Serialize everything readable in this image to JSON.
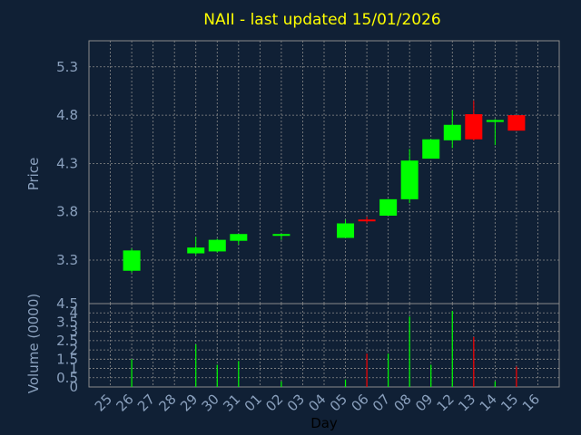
{
  "title": "NAII - last updated 15/01/2026",
  "colors": {
    "background": "#102035",
    "plot_border": "#8a8a8a",
    "grid": "#8a8a8a",
    "axis_text": "#8aa0bd",
    "title": "#ffff00",
    "up": "#00ff00",
    "down": "#ff0000"
  },
  "chart_data": [
    {
      "type": "candlestick",
      "ylabel": "Price",
      "y_ticks": [
        "3.3",
        "3.8",
        "4.3",
        "4.8",
        "5.3"
      ],
      "ylim": [
        2.85,
        5.57
      ],
      "grid": true,
      "x_index_range": [
        -1,
        21
      ],
      "candles": [
        {
          "day": "26",
          "open": 3.19,
          "high": 3.42,
          "low": 3.17,
          "close": 3.4
        },
        {
          "day": "29",
          "open": 3.37,
          "high": 3.54,
          "low": 3.35,
          "close": 3.43
        },
        {
          "day": "30",
          "open": 3.39,
          "high": 3.52,
          "low": 3.38,
          "close": 3.51
        },
        {
          "day": "31",
          "open": 3.5,
          "high": 3.57,
          "low": 3.46,
          "close": 3.57
        },
        {
          "day": "02",
          "open": 3.56,
          "high": 3.57,
          "low": 3.51,
          "close": 3.57
        },
        {
          "day": "05",
          "open": 3.53,
          "high": 3.72,
          "low": 3.53,
          "close": 3.68
        },
        {
          "day": "06",
          "open": 3.72,
          "high": 3.75,
          "low": 3.68,
          "close": 3.71
        },
        {
          "day": "07",
          "open": 3.76,
          "high": 3.93,
          "low": 3.76,
          "close": 3.93
        },
        {
          "day": "08",
          "open": 3.93,
          "high": 4.45,
          "low": 3.89,
          "close": 4.33
        },
        {
          "day": "09",
          "open": 4.35,
          "high": 4.55,
          "low": 4.35,
          "close": 4.55
        },
        {
          "day": "12",
          "open": 4.54,
          "high": 4.85,
          "low": 4.46,
          "close": 4.7
        },
        {
          "day": "13",
          "open": 4.81,
          "high": 4.95,
          "low": 4.54,
          "close": 4.55
        },
        {
          "day": "14",
          "open": 4.73,
          "high": 4.76,
          "low": 4.49,
          "close": 4.75
        },
        {
          "day": "15",
          "open": 4.8,
          "high": 4.8,
          "low": 4.64,
          "close": 4.64
        }
      ]
    },
    {
      "type": "bar",
      "ylabel": "Volume (0000)",
      "xlabel": "Day",
      "y_ticks": [
        "0",
        "0.5",
        "1",
        "1.5",
        "2",
        "2.5",
        "3",
        "3.5",
        "4",
        "4.5"
      ],
      "ylim": [
        0,
        4.5
      ],
      "x_tick_labels": [
        "25",
        "26",
        "27",
        "28",
        "29",
        "30",
        "31",
        "01",
        "02",
        "03",
        "04",
        "05",
        "06",
        "07",
        "08",
        "09",
        "12",
        "13",
        "14",
        "15",
        "16"
      ],
      "bars": [
        {
          "day": "26",
          "value": 1.5,
          "dir": "up"
        },
        {
          "day": "29",
          "value": 2.3,
          "dir": "up"
        },
        {
          "day": "30",
          "value": 1.2,
          "dir": "up"
        },
        {
          "day": "31",
          "value": 1.4,
          "dir": "up"
        },
        {
          "day": "02",
          "value": 0.3,
          "dir": "up"
        },
        {
          "day": "05",
          "value": 0.4,
          "dir": "up"
        },
        {
          "day": "06",
          "value": 1.8,
          "dir": "down"
        },
        {
          "day": "07",
          "value": 1.8,
          "dir": "up"
        },
        {
          "day": "08",
          "value": 3.8,
          "dir": "up"
        },
        {
          "day": "09",
          "value": 1.2,
          "dir": "up"
        },
        {
          "day": "12",
          "value": 4.1,
          "dir": "up"
        },
        {
          "day": "13",
          "value": 2.7,
          "dir": "down"
        },
        {
          "day": "14",
          "value": 0.3,
          "dir": "up"
        },
        {
          "day": "15",
          "value": 1.1,
          "dir": "down"
        }
      ]
    }
  ]
}
